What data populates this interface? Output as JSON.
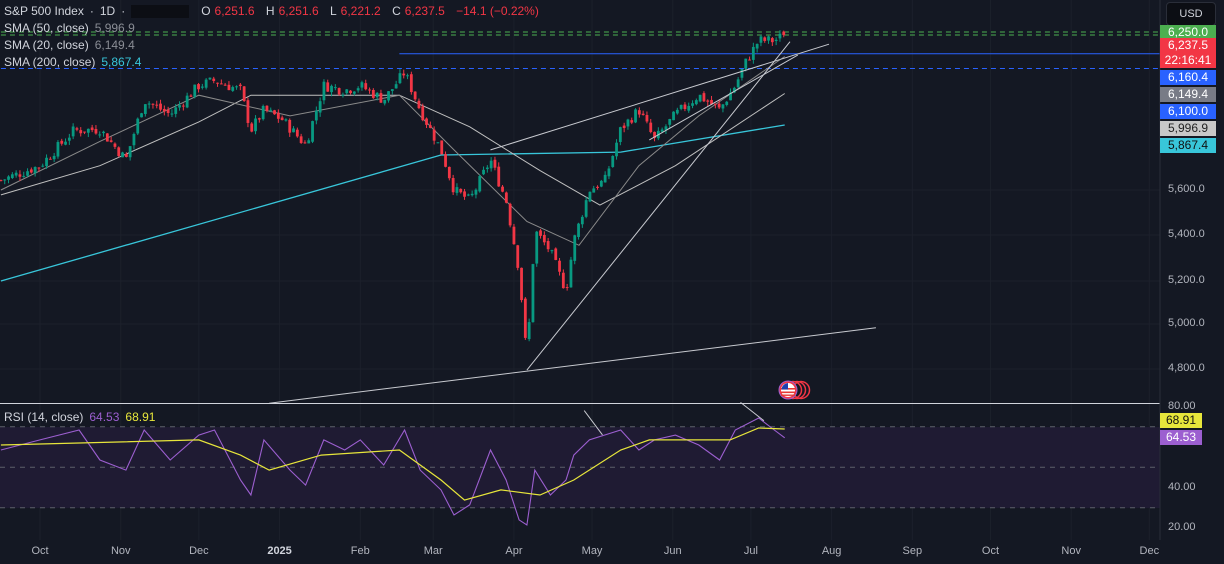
{
  "header": {
    "symbol": "S&P 500 Index",
    "interval": "1D",
    "open_label": "O",
    "open": "6,251.6",
    "high_label": "H",
    "high": "6,251.6",
    "low_label": "L",
    "low": "6,221.2",
    "close_label": "C",
    "close": "6,237.5",
    "change": "−14.1 (−0.22%)",
    "currency": "USD"
  },
  "indicators": [
    {
      "label": "SMA (50, close)",
      "value": "5,996.9",
      "color": "#c0c0c0"
    },
    {
      "label": "SMA (20, close)",
      "value": "6,149.4",
      "color": "#8a8a8a"
    },
    {
      "label": "SMA (200, close)",
      "value": "5,867.4",
      "color": "#38c6da"
    }
  ],
  "rsi": {
    "label": "RSI (14, close)",
    "value": "64.53",
    "ma_value": "68.91",
    "line_color": "#9c5fd0",
    "ma_color": "#e7e63b"
  },
  "price_tags": [
    {
      "text": "6,250.0",
      "bg": "#4caf50",
      "fg": "#ffffff"
    },
    {
      "text": "6,237.5",
      "sub": "22:16:41",
      "bg": "#f23645",
      "fg": "#ffffff"
    },
    {
      "text": "6,160.4",
      "bg": "#2962ff",
      "fg": "#ffffff"
    },
    {
      "text": "6,149.4",
      "bg": "#787b86",
      "fg": "#ffffff"
    },
    {
      "text": "6,100.0",
      "bg": "#2962ff",
      "fg": "#ffffff"
    },
    {
      "text": "5,996.9",
      "bg": "#c8c8c8",
      "fg": "#222222"
    },
    {
      "text": "5,867.4",
      "bg": "#38c6da",
      "fg": "#111111"
    }
  ],
  "rsi_tags": [
    {
      "text": "68.91",
      "bg": "#e7e63b",
      "fg": "#111111"
    },
    {
      "text": "64.53",
      "bg": "#9c5fd0",
      "fg": "#ffffff"
    }
  ],
  "flag_icon": "us-flag-events-icon",
  "chart_data": [
    {
      "type": "candlestick",
      "pane": "price",
      "y_ticks": [
        "5,600.0",
        "5,400.0",
        "5,200.0",
        "5,000.0",
        "4,800.0"
      ],
      "y_tick_values": [
        5600,
        5400,
        5200,
        5000,
        4800
      ],
      "x_ticks": [
        "Oct",
        "Nov",
        "Dec",
        "2025",
        "Feb",
        "Mar",
        "Apr",
        "May",
        "Jun",
        "Jul",
        "Aug",
        "Sep",
        "Oct",
        "Nov",
        "Dec"
      ],
      "x_tick_dates": [
        "2024-10-01",
        "2024-11-01",
        "2024-12-01",
        "2025-01-01",
        "2025-02-01",
        "2025-03-01",
        "2025-04-01",
        "2025-05-01",
        "2025-06-01",
        "2025-07-01",
        "2025-08-01",
        "2025-09-01",
        "2025-10-01",
        "2025-11-01",
        "2025-12-01"
      ],
      "up_color": "#089981",
      "down_color": "#f23645",
      "close_path": [
        [
          "2024-09-16",
          5640
        ],
        [
          "2024-10-01",
          5700
        ],
        [
          "2024-10-14",
          5845
        ],
        [
          "2024-10-24",
          5850
        ],
        [
          "2024-11-03",
          5725
        ],
        [
          "2024-11-10",
          5970
        ],
        [
          "2024-11-20",
          5910
        ],
        [
          "2024-12-01",
          6030
        ],
        [
          "2024-12-07",
          6050
        ],
        [
          "2024-12-17",
          6010
        ],
        [
          "2024-12-21",
          5845
        ],
        [
          "2024-12-26",
          5930
        ],
        [
          "2025-01-02",
          5890
        ],
        [
          "2025-01-11",
          5785
        ],
        [
          "2025-01-18",
          6030
        ],
        [
          "2025-01-26",
          6010
        ],
        [
          "2025-02-01",
          6030
        ],
        [
          "2025-02-10",
          5970
        ],
        [
          "2025-02-18",
          6085
        ],
        [
          "2025-02-24",
          5930
        ],
        [
          "2025-03-04",
          5765
        ],
        [
          "2025-03-09",
          5600
        ],
        [
          "2025-03-15",
          5555
        ],
        [
          "2025-03-23",
          5725
        ],
        [
          "2025-03-29",
          5555
        ],
        [
          "2025-04-03",
          5243
        ],
        [
          "2025-04-06",
          4840
        ],
        [
          "2025-04-09",
          5420
        ],
        [
          "2025-04-15",
          5330
        ],
        [
          "2025-04-21",
          5155
        ],
        [
          "2025-04-24",
          5375
        ],
        [
          "2025-04-30",
          5600
        ],
        [
          "2025-05-06",
          5640
        ],
        [
          "2025-05-12",
          5850
        ],
        [
          "2025-05-19",
          5930
        ],
        [
          "2025-05-25",
          5805
        ],
        [
          "2025-06-02",
          5910
        ],
        [
          "2025-06-11",
          5990
        ],
        [
          "2025-06-19",
          5930
        ],
        [
          "2025-06-25",
          6030
        ],
        [
          "2025-06-29",
          6125
        ],
        [
          "2025-07-04",
          6215
        ],
        [
          "2025-07-10",
          6215
        ],
        [
          "2025-07-14",
          6237.5
        ]
      ],
      "sma_200": [
        [
          "2024-09-16",
          5200
        ],
        [
          "2025-03-04",
          5744
        ],
        [
          "2025-05-12",
          5756
        ],
        [
          "2025-07-14",
          5867.4
        ]
      ],
      "sma_50": [
        [
          "2024-09-16",
          5578
        ],
        [
          "2024-10-24",
          5700
        ],
        [
          "2024-12-01",
          5880
        ],
        [
          "2024-12-21",
          5990
        ],
        [
          "2025-02-16",
          5990
        ],
        [
          "2025-03-15",
          5860
        ],
        [
          "2025-04-11",
          5680
        ],
        [
          "2025-05-04",
          5533
        ],
        [
          "2025-06-02",
          5700
        ],
        [
          "2025-07-14",
          5996.9
        ]
      ],
      "sma_20": [
        [
          "2024-09-16",
          5600
        ],
        [
          "2024-10-24",
          5800
        ],
        [
          "2024-12-01",
          5990
        ],
        [
          "2025-01-05",
          5905
        ],
        [
          "2025-02-16",
          5990
        ],
        [
          "2025-03-09",
          5765
        ],
        [
          "2025-04-06",
          5460
        ],
        [
          "2025-04-26",
          5355
        ],
        [
          "2025-05-19",
          5700
        ],
        [
          "2025-06-11",
          5905
        ],
        [
          "2025-07-14",
          6149.4
        ]
      ],
      "levels": [
        {
          "price": 6250,
          "style": "dashed",
          "color": "#4caf50",
          "from": "2024-09-16"
        },
        {
          "price": 6237.5,
          "style": "dashed",
          "color": "#4caf50",
          "from": "2024-09-16"
        },
        {
          "price": 6160.4,
          "style": "solid",
          "color": "#2962ff",
          "from": "2025-02-16"
        },
        {
          "price": 6100,
          "style": "dashed",
          "color": "#2962ff",
          "from": "2024-09-16"
        }
      ],
      "trend_lines": [
        [
          [
            "2024-12-28",
            4648
          ],
          [
            "2025-08-18",
            4983
          ]
        ],
        [
          [
            "2025-04-06",
            4795
          ],
          [
            "2025-07-16",
            6210
          ]
        ],
        [
          [
            "2025-03-23",
            5765
          ],
          [
            "2025-07-31",
            6200
          ]
        ],
        [
          [
            "2025-05-23",
            5806
          ],
          [
            "2025-07-19",
            6155
          ]
        ]
      ]
    },
    {
      "type": "line",
      "pane": "rsi",
      "y_ticks": [
        "80.00",
        "40.00",
        "20.00"
      ],
      "y_tick_values": [
        80,
        40,
        20
      ],
      "bands": [
        70,
        50,
        30
      ],
      "rsi": [
        [
          "2024-09-16",
          58.5
        ],
        [
          "2024-10-01",
          63.5
        ],
        [
          "2024-10-16",
          68.4
        ],
        [
          "2024-10-24",
          53.6
        ],
        [
          "2024-11-03",
          48.6
        ],
        [
          "2024-11-10",
          68.4
        ],
        [
          "2024-11-20",
          53.6
        ],
        [
          "2024-12-01",
          65.9
        ],
        [
          "2024-12-07",
          68.4
        ],
        [
          "2024-12-17",
          43.7
        ],
        [
          "2024-12-21",
          36.3
        ],
        [
          "2024-12-26",
          63.5
        ],
        [
          "2025-01-05",
          48.6
        ],
        [
          "2025-01-11",
          41.2
        ],
        [
          "2025-01-18",
          63.5
        ],
        [
          "2025-01-26",
          58.5
        ],
        [
          "2025-02-01",
          63.5
        ],
        [
          "2025-02-10",
          51.1
        ],
        [
          "2025-02-18",
          68.4
        ],
        [
          "2025-02-24",
          48.6
        ],
        [
          "2025-03-04",
          38.8
        ],
        [
          "2025-03-09",
          26.4
        ],
        [
          "2025-03-15",
          31.4
        ],
        [
          "2025-03-23",
          58.5
        ],
        [
          "2025-03-29",
          43.7
        ],
        [
          "2025-04-03",
          24.0
        ],
        [
          "2025-04-06",
          21.5
        ],
        [
          "2025-04-09",
          48.6
        ],
        [
          "2025-04-15",
          36.3
        ],
        [
          "2025-04-21",
          43.7
        ],
        [
          "2025-04-24",
          56.0
        ],
        [
          "2025-04-30",
          63.5
        ],
        [
          "2025-05-12",
          68.4
        ],
        [
          "2025-05-19",
          58.5
        ],
        [
          "2025-05-25",
          63.5
        ],
        [
          "2025-06-02",
          65.9
        ],
        [
          "2025-06-11",
          61.0
        ],
        [
          "2025-06-19",
          53.6
        ],
        [
          "2025-06-25",
          68.4
        ],
        [
          "2025-07-04",
          74.3
        ],
        [
          "2025-07-10",
          68.4
        ],
        [
          "2025-07-14",
          64.53
        ]
      ],
      "rsi_ma": [
        [
          "2024-09-16",
          61.0
        ],
        [
          "2024-12-01",
          63.5
        ],
        [
          "2024-12-17",
          56.0
        ],
        [
          "2024-12-28",
          48.6
        ],
        [
          "2025-01-17",
          56.0
        ],
        [
          "2025-02-16",
          58.5
        ],
        [
          "2025-03-04",
          43.7
        ],
        [
          "2025-03-13",
          33.8
        ],
        [
          "2025-03-27",
          38.8
        ],
        [
          "2025-04-11",
          36.3
        ],
        [
          "2025-04-24",
          43.7
        ],
        [
          "2025-05-12",
          58.5
        ],
        [
          "2025-05-23",
          63.5
        ],
        [
          "2025-06-11",
          63.5
        ],
        [
          "2025-06-23",
          63.5
        ],
        [
          "2025-07-04",
          69.4
        ],
        [
          "2025-07-14",
          68.91
        ]
      ],
      "trend_lines": [
        [
          [
            "2025-04-28",
            78
          ],
          [
            "2025-05-05",
            66
          ]
        ],
        [
          [
            "2025-06-27",
            82
          ],
          [
            "2025-07-06",
            73
          ]
        ]
      ]
    }
  ]
}
